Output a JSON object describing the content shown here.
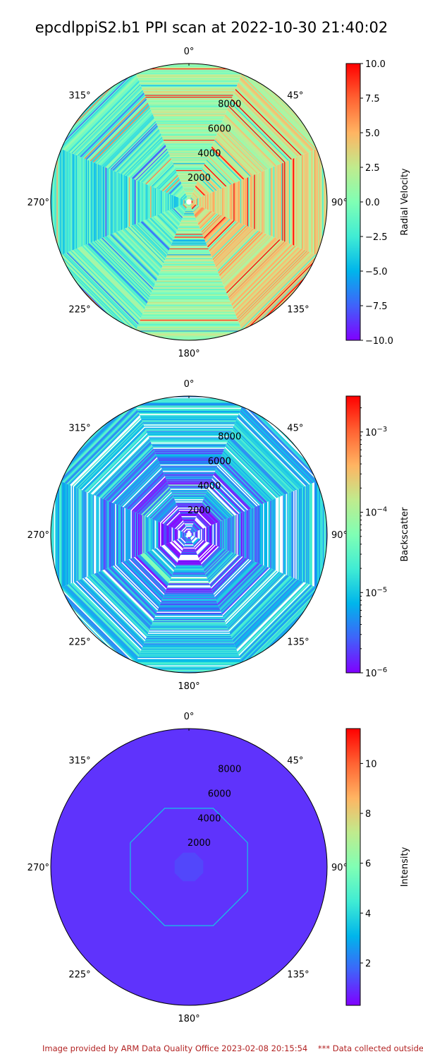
{
  "title": "epcdlppiS2.b1 PPI scan at 2022-10-30 21:40:02",
  "footer": "Image provided by ARM Data Quality Office 2023-02-08 20:15:54    *** Data collected outside",
  "chart_data": [
    {
      "type": "heatmap",
      "projection": "polar",
      "grid": false,
      "theta_ticks": [
        "0°",
        "45°",
        "90°",
        "135°",
        "180°",
        "225°",
        "270°",
        "315°"
      ],
      "r_ticks": [
        2000,
        4000,
        6000,
        8000
      ],
      "r_tick_labels": [
        "2000",
        "4000",
        "6000",
        "8000"
      ],
      "rlim": [
        0,
        10400
      ],
      "num_sectors": 8,
      "colorbar": {
        "label": "Radial Velocity",
        "scale": "linear",
        "range": [
          -10,
          10
        ],
        "ticks": [
          10,
          7.5,
          5,
          2.5,
          0,
          -2.5,
          -5,
          -7.5,
          -10
        ],
        "tick_labels": [
          "10.0",
          "7.5",
          "5.0",
          "2.5",
          "0.0",
          "−2.5",
          "−5.0",
          "−7.5",
          "−10.0"
        ],
        "colormap": "rainbow"
      },
      "sector_mean_values": [
        1.0,
        2.5,
        3.5,
        4.0,
        0.8,
        -1.0,
        -2.5,
        -1.5
      ]
    },
    {
      "type": "heatmap",
      "projection": "polar",
      "grid": false,
      "theta_ticks": [
        "0°",
        "45°",
        "90°",
        "135°",
        "180°",
        "225°",
        "270°",
        "315°"
      ],
      "r_ticks": [
        2000,
        4000,
        6000,
        8000
      ],
      "r_tick_labels": [
        "2000",
        "4000",
        "6000",
        "8000"
      ],
      "rlim": [
        0,
        10400
      ],
      "num_sectors": 8,
      "colorbar": {
        "label": "Backscatter",
        "scale": "log",
        "range": [
          1e-06,
          0.0028
        ],
        "ticks": [
          0.001,
          0.0001,
          1e-05,
          1e-06
        ],
        "tick_labels": [
          "10−3",
          "10−4",
          "10−5",
          "10−6"
        ],
        "colormap": "rainbow"
      },
      "radial_profile_log10": [
        {
          "r": 1000,
          "value": -5.5
        },
        {
          "r": 2500,
          "value": -5.9
        },
        {
          "r": 3800,
          "value": -5.2
        },
        {
          "r": 5000,
          "value": -5.6
        },
        {
          "r": 7000,
          "value": -5.3
        },
        {
          "r": 9000,
          "value": -5.0
        }
      ]
    },
    {
      "type": "heatmap",
      "projection": "polar",
      "grid": false,
      "theta_ticks": [
        "0°",
        "45°",
        "90°",
        "135°",
        "180°",
        "225°",
        "270°",
        "315°"
      ],
      "r_ticks": [
        2000,
        4000,
        6000,
        8000
      ],
      "r_tick_labels": [
        "2000",
        "4000",
        "6000",
        "8000"
      ],
      "rlim": [
        0,
        10400
      ],
      "num_sectors": 8,
      "colorbar": {
        "label": "Intensity",
        "scale": "linear",
        "range": [
          0.3,
          11.4
        ],
        "ticks": [
          10,
          8,
          6,
          4,
          2
        ],
        "tick_labels": [
          "10",
          "8",
          "6",
          "4",
          "2"
        ],
        "colormap": "rainbow"
      },
      "background_value": 1.02,
      "ring_r": 4500,
      "ring_value": 3.5
    }
  ]
}
